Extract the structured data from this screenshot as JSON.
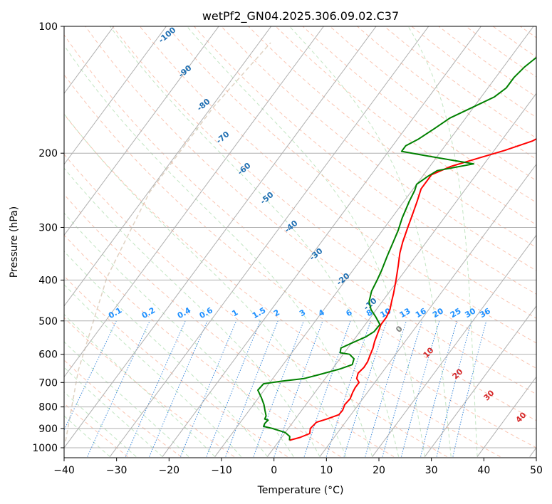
{
  "chart_data": {
    "type": "line",
    "title": "wetPf2_GN04.2025.306.09.02.C37",
    "xlabel": "Temperature (°C)",
    "ylabel": "Pressure (hPa)",
    "xlim": [
      -40,
      50
    ],
    "ylim": [
      1050,
      100
    ],
    "x_ticks": [
      "−40",
      "−30",
      "−20",
      "−10",
      "0",
      "10",
      "20",
      "30",
      "40",
      "50"
    ],
    "y_ticks": [
      "100",
      "200",
      "300",
      "400",
      "500",
      "600",
      "700",
      "800",
      "900",
      "1000"
    ],
    "dry_adiabat_labels": [
      "-100",
      "-90",
      "-80",
      "-70",
      "-60",
      "-50",
      "-40",
      "-30",
      "-20",
      "-10"
    ],
    "mixing_ratio_labels": [
      "0.1",
      "0.2",
      "0.4",
      "0.6",
      "1",
      "1.5",
      "2",
      "3",
      "4",
      "6",
      "8",
      "10",
      "13",
      "16",
      "20",
      "25",
      "30",
      "36"
    ],
    "moist_adiabat_labels": [
      "0",
      "10",
      "20",
      "30",
      "40"
    ],
    "series": [
      {
        "name": "temperature",
        "color": "#ff0000",
        "points": [
          [
            1.9,
            960
          ],
          [
            3.5,
            945
          ],
          [
            4.8,
            925
          ],
          [
            4.2,
            900
          ],
          [
            4.5,
            870
          ],
          [
            6,
            855
          ],
          [
            7.7,
            835
          ],
          [
            7.8,
            815
          ],
          [
            7.4,
            790
          ],
          [
            7.6,
            765
          ],
          [
            7.2,
            740
          ],
          [
            7,
            720
          ],
          [
            7,
            700
          ],
          [
            6,
            685
          ],
          [
            5.5,
            665
          ],
          [
            5.8,
            645
          ],
          [
            5.7,
            625
          ],
          [
            5.3,
            605
          ],
          [
            4.8,
            580
          ],
          [
            4.2,
            560
          ],
          [
            3.5,
            530
          ],
          [
            3,
            510
          ],
          [
            3,
            490
          ],
          [
            2.6,
            470
          ],
          [
            1.8,
            450
          ],
          [
            1,
            430
          ],
          [
            -0.4,
            400
          ],
          [
            -2,
            370
          ],
          [
            -3.5,
            345
          ],
          [
            -4.5,
            325
          ],
          [
            -5.6,
            300
          ],
          [
            -6.5,
            280
          ],
          [
            -7.5,
            260
          ],
          [
            -8.5,
            243
          ],
          [
            -8.5,
            225
          ],
          [
            -6,
            215
          ],
          [
            -1.7,
            205
          ],
          [
            2,
            197
          ],
          [
            6,
            187
          ],
          [
            8.5,
            175
          ],
          [
            10,
            160
          ],
          [
            13,
            145
          ],
          [
            17,
            130
          ],
          [
            20,
            120
          ],
          [
            21.5,
            112
          ],
          [
            24,
            105
          ],
          [
            26,
            100
          ]
        ]
      },
      {
        "name": "dewpoint",
        "color": "#008000",
        "points": [
          [
            1.9,
            960
          ],
          [
            1.4,
            940
          ],
          [
            0,
            920
          ],
          [
            -3,
            900
          ],
          [
            -5,
            890
          ],
          [
            -5.2,
            875
          ],
          [
            -5,
            860
          ],
          [
            -5.8,
            855
          ],
          [
            -6,
            840
          ],
          [
            -7,
            815
          ],
          [
            -8,
            790
          ],
          [
            -9.5,
            760
          ],
          [
            -11.2,
            730
          ],
          [
            -11,
            705
          ],
          [
            -8,
            695
          ],
          [
            -4,
            685
          ],
          [
            -1.6,
            670
          ],
          [
            1.5,
            650
          ],
          [
            3.2,
            635
          ],
          [
            2.7,
            615
          ],
          [
            1.2,
            600
          ],
          [
            -0.8,
            595
          ],
          [
            -1.3,
            580
          ],
          [
            0,
            565
          ],
          [
            1.9,
            545
          ],
          [
            2.7,
            530
          ],
          [
            2.8,
            510
          ],
          [
            1,
            490
          ],
          [
            -1,
            470
          ],
          [
            -2.5,
            450
          ],
          [
            -3.5,
            425
          ],
          [
            -4,
            400
          ],
          [
            -4.5,
            380
          ],
          [
            -5.5,
            350
          ],
          [
            -6.3,
            325
          ],
          [
            -7,
            305
          ],
          [
            -8,
            285
          ],
          [
            -9,
            260
          ],
          [
            -9.5,
            245
          ],
          [
            -10,
            237
          ],
          [
            -9,
            227
          ],
          [
            -8,
            220
          ],
          [
            -2,
            212
          ],
          [
            -12,
            203
          ],
          [
            -17.5,
            198
          ],
          [
            -17.5,
            192
          ],
          [
            -16,
            185
          ],
          [
            -14.5,
            175
          ],
          [
            -13,
            165
          ],
          [
            -10,
            155
          ],
          [
            -7.5,
            147
          ],
          [
            -6.5,
            140
          ],
          [
            -6.5,
            132
          ],
          [
            -6,
            125
          ],
          [
            -5,
            118
          ],
          [
            -3,
            112
          ],
          [
            -1,
            106
          ],
          [
            0,
            100
          ]
        ]
      }
    ]
  }
}
